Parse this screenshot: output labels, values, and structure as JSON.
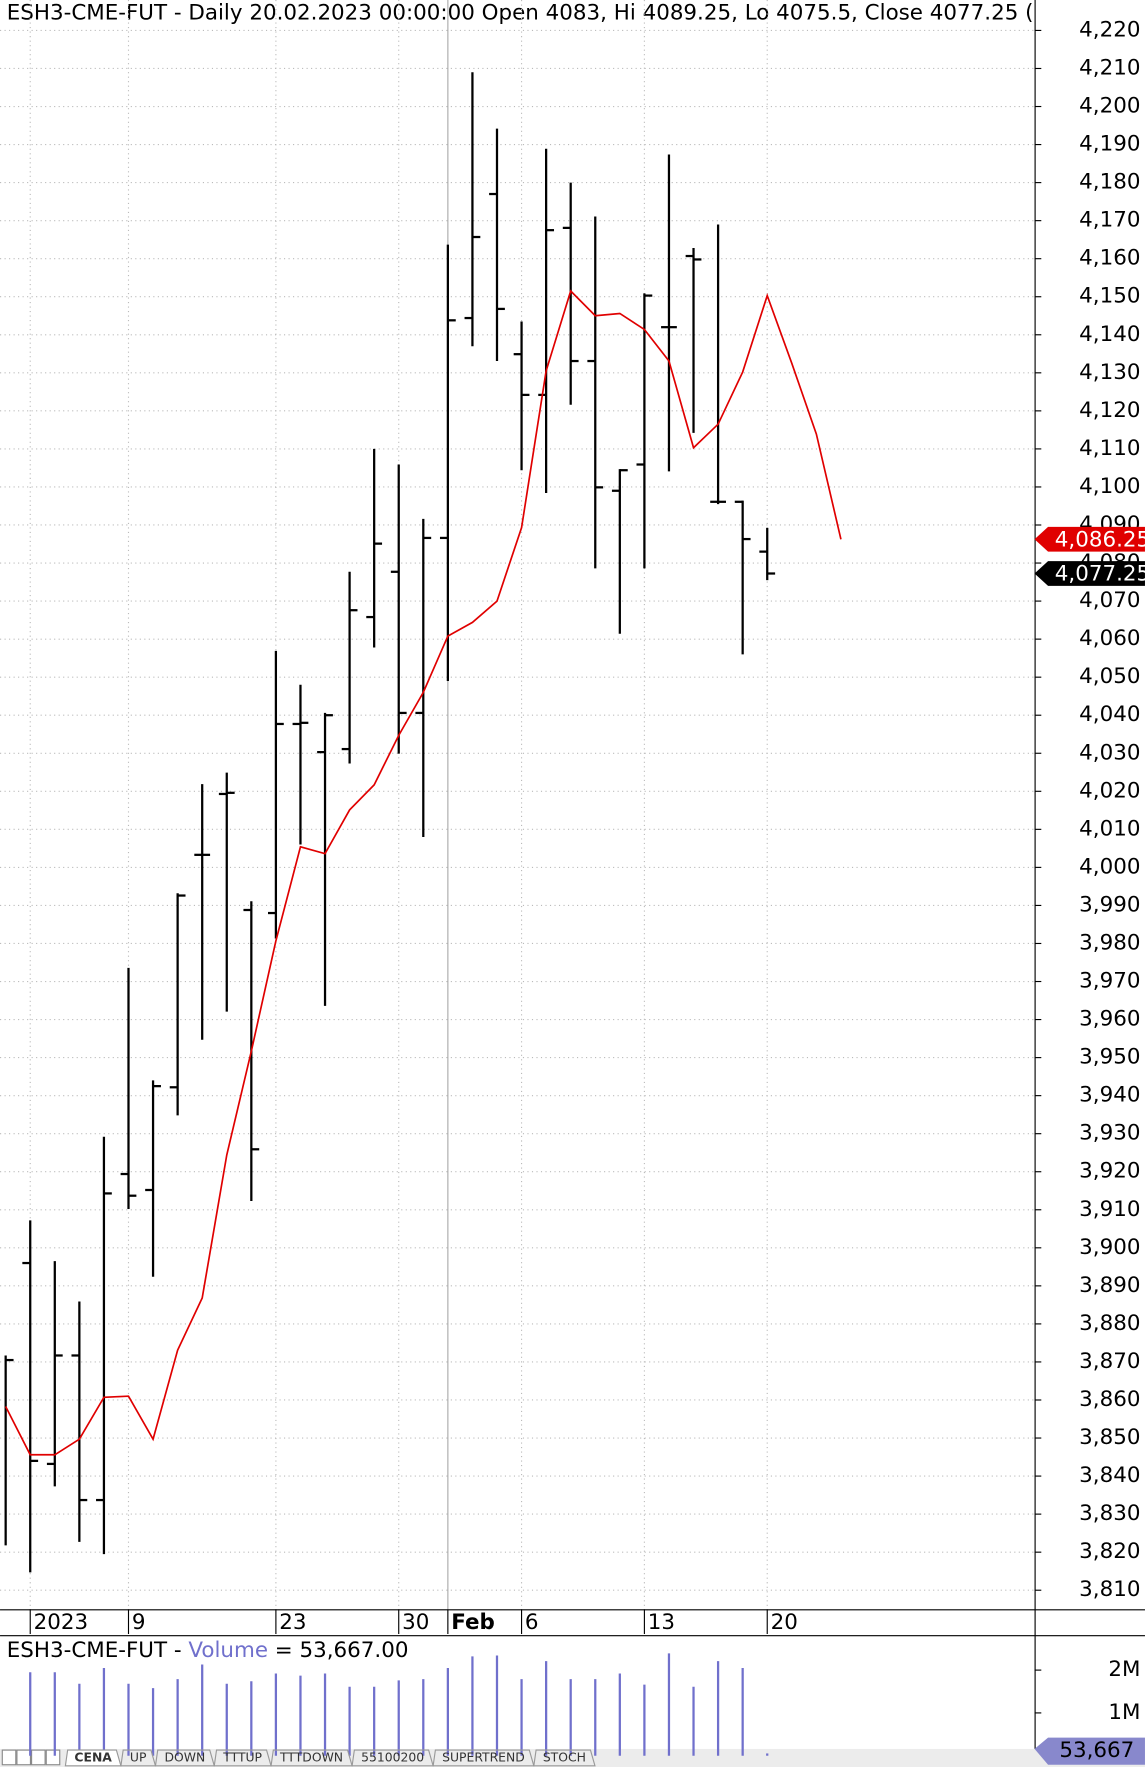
{
  "chart_data": [
    {
      "type": "ohlc",
      "title": "ESH3-CME-FUT - Daily 20.02.2023 00:00:00 Open 4083, Hi 4089.25, Lo 4075.5, Close 4077.25 (",
      "categories": [
        null,
        "2023",
        null,
        null,
        null,
        "9",
        null,
        null,
        null,
        null,
        null,
        "23",
        null,
        null,
        null,
        null,
        "30",
        null,
        "Feb",
        null,
        null,
        "6",
        null,
        null,
        null,
        null,
        "13",
        null,
        null,
        null,
        null,
        "20",
        null,
        null,
        null
      ],
      "color": "#000000",
      "open": [
        null,
        3896,
        3843.2,
        3871.7,
        3833.7,
        3919.4,
        3915.2,
        3942.2,
        4003.3,
        4019.3,
        3988.8,
        3988,
        4037.7,
        4030.3,
        4031.1,
        4065.8,
        4077.7,
        4040.6,
        4086.6,
        4144.4,
        4177,
        4134.9,
        4124.2,
        4168.1,
        4133.1,
        4099,
        4105.9,
        4142,
        4160.7,
        4096.1,
        4096.1,
        4083,
        null,
        null,
        null
      ],
      "high": [
        3871.7,
        3907.2,
        3896.5,
        3885.9,
        3929.2,
        3973.6,
        3944,
        3993.2,
        4021.9,
        4024.9,
        3991.1,
        4056.9,
        4048,
        4040.6,
        4077.7,
        4110,
        4105.9,
        4091.6,
        4163.7,
        4209,
        4194.2,
        4143.5,
        4188.9,
        4180,
        4171.1,
        4104.7,
        4150.9,
        4187.4,
        4162.8,
        4169,
        4096.4,
        4089.25,
        null,
        null,
        null
      ],
      "low": [
        3821.8,
        3814.7,
        3837.3,
        3822.7,
        3819.5,
        3910.2,
        3892.4,
        3934.8,
        3954.7,
        3962.1,
        3912.3,
        3981.3,
        4006,
        3963.6,
        4027.3,
        4057.8,
        4029.9,
        4008,
        4049,
        4137,
        4133.1,
        4104.4,
        4098.4,
        4121.6,
        4078.6,
        4061.4,
        4078.6,
        4104.1,
        4114.2,
        4095.5,
        4056,
        4075.5,
        null,
        null,
        null
      ],
      "close": [
        3870.5,
        3844,
        3871.7,
        3833.7,
        3914.3,
        3913.7,
        3942.5,
        3992.6,
        4003.3,
        4019.6,
        3925.9,
        4037.7,
        4038,
        4040,
        4067.6,
        4085.1,
        4040.6,
        4086.6,
        4143.8,
        4165.7,
        4146.8,
        4124.2,
        4167.5,
        4133.1,
        4099.9,
        4104.4,
        4150.3,
        4142,
        4159.8,
        4096.1,
        4086.3,
        4077.25,
        null,
        null,
        null
      ],
      "ma": {
        "color": "#e00000",
        "values": [
          3858.3,
          3845.6,
          3845.6,
          3849.7,
          3860.7,
          3861,
          3849.7,
          3873.1,
          3886.8,
          3924.4,
          3951.7,
          3980.7,
          4005.4,
          4003.6,
          4015.1,
          4021.7,
          4034.7,
          4046,
          4060.8,
          4064.4,
          4070,
          4089.3,
          4130.5,
          4151.5,
          4145,
          4145.6,
          4141.4,
          4133.1,
          4110.3,
          4116.5,
          4130.2,
          4150.3,
          4132.5,
          4113.9,
          4086.25
        ]
      },
      "price_tags": [
        {
          "value": 4086.25,
          "label": "4,086.25",
          "color": "#e00000"
        },
        {
          "value": 4077.25,
          "label": "4,077.25",
          "color": "#000000"
        }
      ],
      "ylim": [
        3805,
        4228
      ],
      "yticks": [
        {
          "value": 3810,
          "label": "3,810"
        },
        {
          "value": 3820,
          "label": "3,820"
        },
        {
          "value": 3830,
          "label": "3,830"
        },
        {
          "value": 3840,
          "label": "3,840"
        },
        {
          "value": 3850,
          "label": "3,850"
        },
        {
          "value": 3860,
          "label": "3,860"
        },
        {
          "value": 3870,
          "label": "3,870"
        },
        {
          "value": 3880,
          "label": "3,880"
        },
        {
          "value": 3890,
          "label": "3,890"
        },
        {
          "value": 3900,
          "label": "3,900"
        },
        {
          "value": 3910,
          "label": "3,910"
        },
        {
          "value": 3920,
          "label": "3,920"
        },
        {
          "value": 3930,
          "label": "3,930"
        },
        {
          "value": 3940,
          "label": "3,940"
        },
        {
          "value": 3950,
          "label": "3,950"
        },
        {
          "value": 3960,
          "label": "3,960"
        },
        {
          "value": 3970,
          "label": "3,970"
        },
        {
          "value": 3980,
          "label": "3,980"
        },
        {
          "value": 3990,
          "label": "3,990"
        },
        {
          "value": 4000,
          "label": "4,000"
        },
        {
          "value": 4010,
          "label": "4,010"
        },
        {
          "value": 4020,
          "label": "4,020"
        },
        {
          "value": 4030,
          "label": "4,030"
        },
        {
          "value": 4040,
          "label": "4,040"
        },
        {
          "value": 4050,
          "label": "4,050"
        },
        {
          "value": 4060,
          "label": "4,060"
        },
        {
          "value": 4070,
          "label": "4,070"
        },
        {
          "value": 4080,
          "label": "4,080"
        },
        {
          "value": 4090,
          "label": "4,090"
        },
        {
          "value": 4100,
          "label": "4,100"
        },
        {
          "value": 4110,
          "label": "4,110"
        },
        {
          "value": 4120,
          "label": "4,120"
        },
        {
          "value": 4130,
          "label": "4,130"
        },
        {
          "value": 4140,
          "label": "4,140"
        },
        {
          "value": 4150,
          "label": "4,150"
        },
        {
          "value": 4160,
          "label": "4,160"
        },
        {
          "value": 4170,
          "label": "4,170"
        },
        {
          "value": 4180,
          "label": "4,180"
        },
        {
          "value": 4190,
          "label": "4,190"
        },
        {
          "value": 4200,
          "label": "4,200"
        },
        {
          "value": 4210,
          "label": "4,210"
        },
        {
          "value": 4220,
          "label": "4,220"
        }
      ],
      "grid": true
    },
    {
      "type": "bar",
      "title_prefix": "ESH3-CME-FUT - ",
      "title_suffix": "= 53,667.00",
      "series": [
        {
          "name": "Volume",
          "color": "#7070cc",
          "values": [
            null,
            1950000,
            1950000,
            1680000,
            2050000,
            1680000,
            1580000,
            1790000,
            2130000,
            1680000,
            1740000,
            1920000,
            1870000,
            1920000,
            1610000,
            1610000,
            1760000,
            1790000,
            2050000,
            2320000,
            2340000,
            1790000,
            2210000,
            1790000,
            1790000,
            1920000,
            1660000,
            2390000,
            1610000,
            2210000,
            2050000,
            53667,
            null,
            null,
            null
          ]
        }
      ],
      "last_tag": {
        "value": 53667,
        "label": "53,667"
      },
      "ylim": [
        0,
        2790000
      ],
      "yticks": [
        {
          "value": 1000000,
          "label": "1M"
        },
        {
          "value": 2000000,
          "label": "2M"
        }
      ]
    }
  ],
  "tabs": [
    "CENA",
    "UP",
    "DOWN",
    "TTTUP",
    "TTTDOWN",
    "55100200",
    "SUPERTREND",
    "STOCH"
  ]
}
